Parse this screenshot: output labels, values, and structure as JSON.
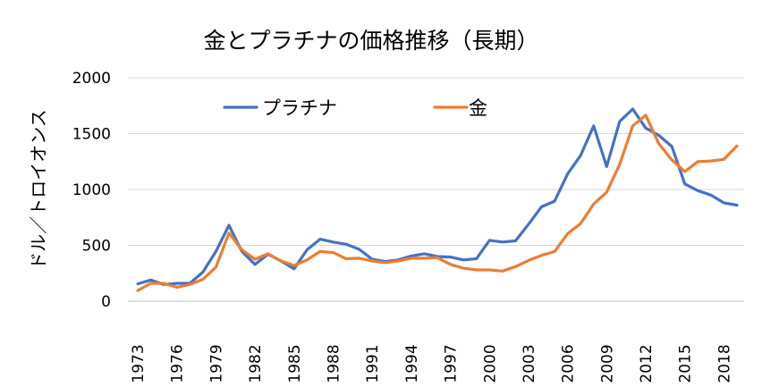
{
  "chart_data": {
    "type": "line",
    "title": "金とプラチナの価格推移（長期）",
    "xlabel": "",
    "ylabel": "ドル／トロイオンス",
    "ylim": [
      0,
      2000
    ],
    "yticks": [
      0,
      500,
      1000,
      1500,
      2000
    ],
    "xticks": [
      "1973",
      "1976",
      "1979",
      "1982",
      "1985",
      "1988",
      "1991",
      "1994",
      "1997",
      "2000",
      "2003",
      "2006",
      "2009",
      "2012",
      "2015",
      "2018"
    ],
    "grid": "horizontal",
    "legend_position": "top",
    "x": [
      1973,
      1974,
      1975,
      1976,
      1977,
      1978,
      1979,
      1980,
      1981,
      1982,
      1983,
      1984,
      1985,
      1986,
      1987,
      1988,
      1989,
      1990,
      1991,
      1992,
      1993,
      1994,
      1995,
      1996,
      1997,
      1998,
      1999,
      2000,
      2001,
      2002,
      2003,
      2004,
      2005,
      2006,
      2007,
      2008,
      2009,
      2010,
      2011,
      2012,
      2013,
      2014,
      2015,
      2016,
      2017,
      2018,
      2019
    ],
    "series": [
      {
        "name": "プラチナ",
        "color": "#4472C4",
        "values": [
          155,
          190,
          150,
          160,
          160,
          260,
          445,
          680,
          445,
          330,
          420,
          360,
          290,
          460,
          555,
          530,
          510,
          465,
          375,
          355,
          370,
          405,
          425,
          400,
          395,
          370,
          380,
          545,
          530,
          540,
          690,
          845,
          895,
          1140,
          1305,
          1570,
          1205,
          1610,
          1720,
          1550,
          1485,
          1385,
          1050,
          990,
          950,
          880,
          860
        ]
      },
      {
        "name": "金",
        "color": "#ED7D31",
        "values": [
          95,
          160,
          160,
          125,
          150,
          195,
          305,
          610,
          460,
          375,
          425,
          360,
          320,
          370,
          445,
          435,
          380,
          385,
          360,
          345,
          360,
          385,
          385,
          390,
          330,
          295,
          280,
          280,
          270,
          310,
          365,
          410,
          445,
          605,
          695,
          870,
          975,
          1225,
          1570,
          1665,
          1410,
          1265,
          1160,
          1250,
          1255,
          1270,
          1390
        ]
      }
    ]
  }
}
